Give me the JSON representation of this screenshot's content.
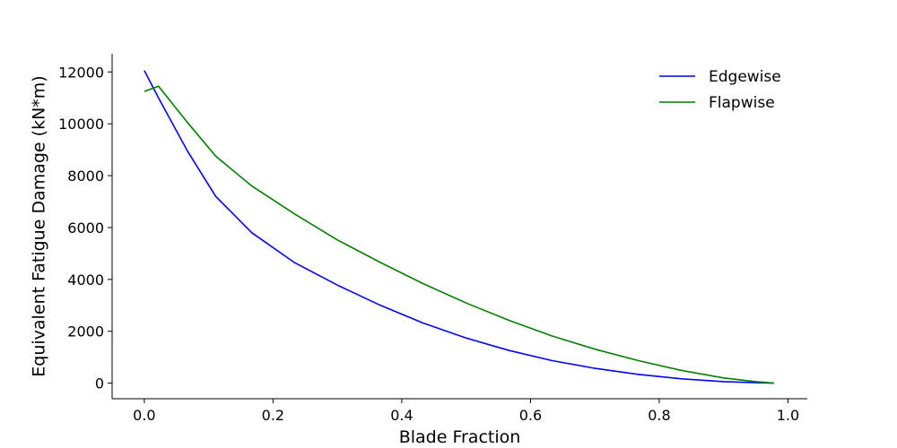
{
  "chart_data": {
    "type": "line",
    "title": "",
    "xlabel": "Blade Fraction",
    "ylabel": "Equivalent Fatigue Damage (kN*m)",
    "xlim": [
      -0.05,
      1.03
    ],
    "ylim": [
      -600,
      12700
    ],
    "xticks": [
      0.0,
      0.2,
      0.4,
      0.6,
      0.8,
      1.0
    ],
    "xtick_labels": [
      "0.0",
      "0.2",
      "0.4",
      "0.6",
      "0.8",
      "1.0"
    ],
    "yticks": [
      0,
      2000,
      4000,
      6000,
      8000,
      10000,
      12000
    ],
    "ytick_labels": [
      "0",
      "2000",
      "4000",
      "6000",
      "8000",
      "10000",
      "12000"
    ],
    "grid": false,
    "legend_position": "top-right",
    "series": [
      {
        "name": "Edgewise",
        "color": "#0000ff",
        "x": [
          0.0,
          0.022,
          0.067,
          0.111,
          0.167,
          0.233,
          0.3,
          0.367,
          0.433,
          0.5,
          0.567,
          0.633,
          0.7,
          0.767,
          0.833,
          0.9,
          0.95,
          0.978
        ],
        "y": [
          12050,
          11000,
          8950,
          7200,
          5800,
          4650,
          3780,
          3000,
          2320,
          1740,
          1260,
          870,
          570,
          340,
          170,
          60,
          20,
          0
        ]
      },
      {
        "name": "Flapwise",
        "color": "#008000",
        "x": [
          0.0,
          0.022,
          0.067,
          0.111,
          0.167,
          0.233,
          0.3,
          0.367,
          0.433,
          0.5,
          0.567,
          0.633,
          0.7,
          0.767,
          0.833,
          0.9,
          0.95,
          0.978
        ],
        "y": [
          11250,
          11450,
          10050,
          8750,
          7600,
          6530,
          5520,
          4650,
          3840,
          3090,
          2420,
          1820,
          1310,
          870,
          500,
          200,
          60,
          0
        ]
      }
    ]
  }
}
